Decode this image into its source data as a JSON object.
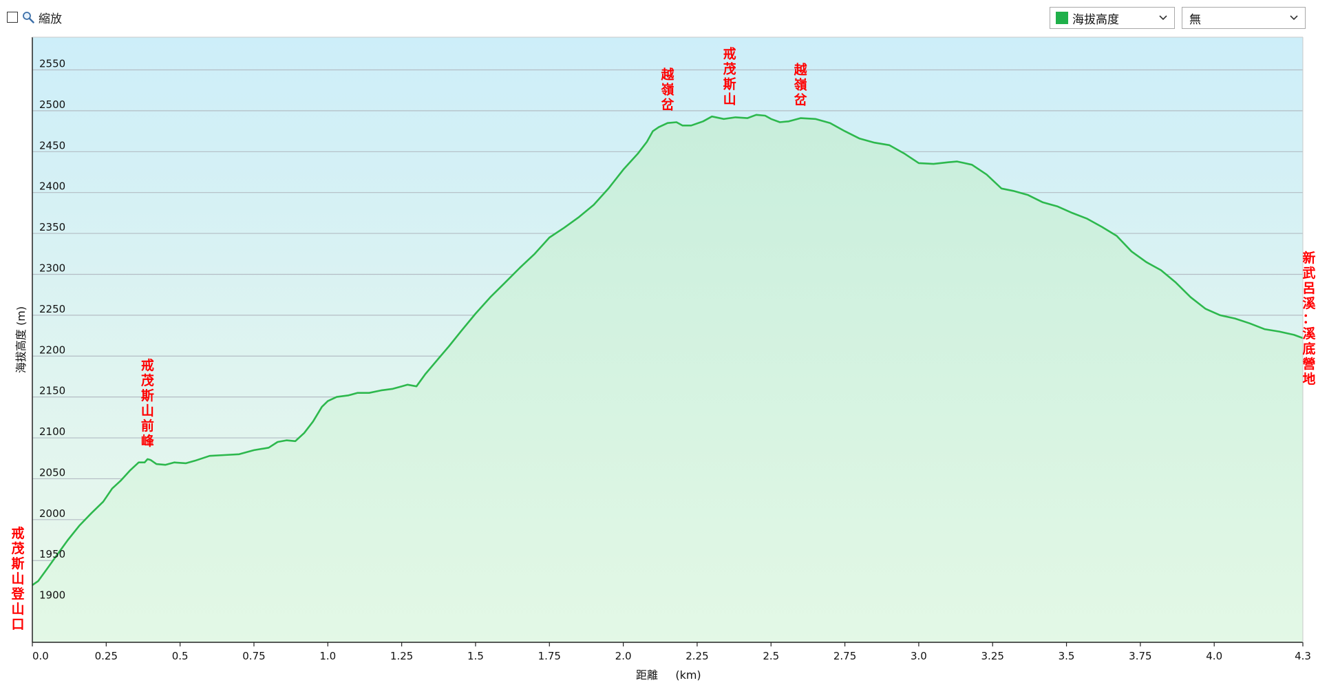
{
  "toolbar": {
    "zoom_label": "縮放",
    "metric_select": {
      "value": "海拔高度",
      "swatch_color": "#1fb04a"
    },
    "extra_select": {
      "value": "無"
    }
  },
  "chart_data": {
    "type": "area",
    "xlabel": "距離",
    "xunit": "(km)",
    "ylabel": "海拔高度 (m)",
    "xlim": [
      0,
      4.3
    ],
    "ylim": [
      1850,
      2590
    ],
    "x_ticks": [
      0,
      0.25,
      0.5,
      0.75,
      1.0,
      1.25,
      1.5,
      1.75,
      2.0,
      2.25,
      2.5,
      2.75,
      3.0,
      3.25,
      3.5,
      3.75,
      4.0,
      4.3
    ],
    "x_tick_labels": [
      "0.0",
      "0.25",
      "0.5",
      "0.75",
      "1.0",
      "1.25",
      "1.5",
      "1.75",
      "2.0",
      "2.25",
      "2.5",
      "2.75",
      "3.0",
      "3.25",
      "3.5",
      "3.75",
      "4.0",
      "4.3"
    ],
    "y_ticks": [
      1900,
      1950,
      2000,
      2050,
      2100,
      2150,
      2200,
      2250,
      2300,
      2350,
      2400,
      2450,
      2500,
      2550
    ],
    "grid": true,
    "line_color": "#2db84d",
    "series": [
      {
        "values": [
          [
            0.0,
            1920
          ],
          [
            0.02,
            1925
          ],
          [
            0.05,
            1940
          ],
          [
            0.08,
            1955
          ],
          [
            0.12,
            1975
          ],
          [
            0.16,
            1993
          ],
          [
            0.2,
            2008
          ],
          [
            0.24,
            2022
          ],
          [
            0.27,
            2038
          ],
          [
            0.3,
            2048
          ],
          [
            0.33,
            2060
          ],
          [
            0.36,
            2070
          ],
          [
            0.38,
            2070
          ],
          [
            0.39,
            2074
          ],
          [
            0.4,
            2073
          ],
          [
            0.42,
            2068
          ],
          [
            0.45,
            2067
          ],
          [
            0.48,
            2070
          ],
          [
            0.52,
            2069
          ],
          [
            0.55,
            2072
          ],
          [
            0.6,
            2078
          ],
          [
            0.65,
            2079
          ],
          [
            0.7,
            2080
          ],
          [
            0.75,
            2085
          ],
          [
            0.8,
            2088
          ],
          [
            0.83,
            2095
          ],
          [
            0.86,
            2097
          ],
          [
            0.89,
            2096
          ],
          [
            0.92,
            2106
          ],
          [
            0.95,
            2120
          ],
          [
            0.98,
            2138
          ],
          [
            1.0,
            2145
          ],
          [
            1.03,
            2150
          ],
          [
            1.07,
            2152
          ],
          [
            1.1,
            2155
          ],
          [
            1.14,
            2155
          ],
          [
            1.18,
            2158
          ],
          [
            1.22,
            2160
          ],
          [
            1.25,
            2163
          ],
          [
            1.27,
            2165
          ],
          [
            1.3,
            2163
          ],
          [
            1.33,
            2178
          ],
          [
            1.37,
            2195
          ],
          [
            1.41,
            2212
          ],
          [
            1.45,
            2230
          ],
          [
            1.5,
            2252
          ],
          [
            1.55,
            2272
          ],
          [
            1.6,
            2290
          ],
          [
            1.65,
            2308
          ],
          [
            1.7,
            2325
          ],
          [
            1.75,
            2345
          ],
          [
            1.8,
            2357
          ],
          [
            1.85,
            2370
          ],
          [
            1.9,
            2385
          ],
          [
            1.95,
            2405
          ],
          [
            2.0,
            2428
          ],
          [
            2.05,
            2448
          ],
          [
            2.08,
            2462
          ],
          [
            2.1,
            2475
          ],
          [
            2.12,
            2480
          ],
          [
            2.15,
            2485
          ],
          [
            2.18,
            2486
          ],
          [
            2.2,
            2482
          ],
          [
            2.23,
            2482
          ],
          [
            2.27,
            2487
          ],
          [
            2.3,
            2493
          ],
          [
            2.34,
            2490
          ],
          [
            2.38,
            2492
          ],
          [
            2.42,
            2491
          ],
          [
            2.45,
            2495
          ],
          [
            2.48,
            2494
          ],
          [
            2.5,
            2490
          ],
          [
            2.53,
            2486
          ],
          [
            2.56,
            2487
          ],
          [
            2.6,
            2491
          ],
          [
            2.65,
            2490
          ],
          [
            2.7,
            2485
          ],
          [
            2.75,
            2475
          ],
          [
            2.8,
            2466
          ],
          [
            2.85,
            2461
          ],
          [
            2.9,
            2458
          ],
          [
            2.95,
            2448
          ],
          [
            3.0,
            2436
          ],
          [
            3.05,
            2435
          ],
          [
            3.1,
            2437
          ],
          [
            3.13,
            2438
          ],
          [
            3.18,
            2434
          ],
          [
            3.23,
            2422
          ],
          [
            3.28,
            2405
          ],
          [
            3.32,
            2402
          ],
          [
            3.37,
            2397
          ],
          [
            3.42,
            2388
          ],
          [
            3.47,
            2383
          ],
          [
            3.52,
            2375
          ],
          [
            3.57,
            2368
          ],
          [
            3.62,
            2358
          ],
          [
            3.67,
            2347
          ],
          [
            3.72,
            2328
          ],
          [
            3.77,
            2315
          ],
          [
            3.82,
            2305
          ],
          [
            3.87,
            2290
          ],
          [
            3.92,
            2272
          ],
          [
            3.97,
            2258
          ],
          [
            4.02,
            2250
          ],
          [
            4.07,
            2246
          ],
          [
            4.12,
            2240
          ],
          [
            4.17,
            2233
          ],
          [
            4.22,
            2230
          ],
          [
            4.27,
            2226
          ],
          [
            4.3,
            2222
          ]
        ]
      }
    ],
    "annotations": [
      {
        "text": "戒茂斯山登山口",
        "x": 0.0,
        "y": 1920
      },
      {
        "text": "戒茂斯山前峰",
        "x": 0.39,
        "y": 2074
      },
      {
        "text": "越嶺岔",
        "x": 2.15,
        "y": 2485
      },
      {
        "text": "戒茂斯山",
        "x": 2.36,
        "y": 2492
      },
      {
        "text": "越嶺岔",
        "x": 2.6,
        "y": 2491
      },
      {
        "text": "新武呂溪：溪底營地",
        "x": 4.3,
        "y": 2222
      }
    ]
  }
}
